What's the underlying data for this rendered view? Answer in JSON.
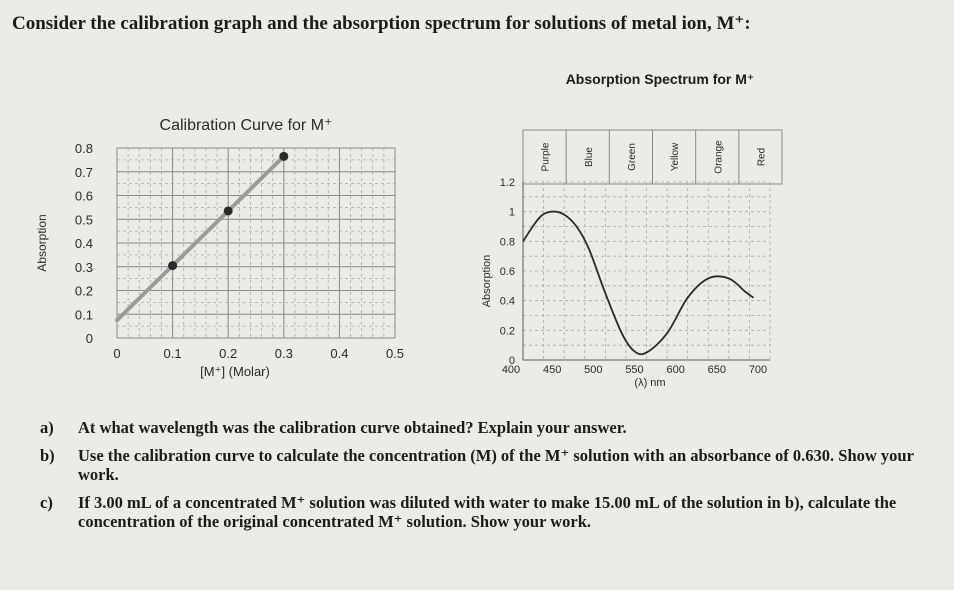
{
  "intro": {
    "text": "Consider the calibration graph and the absorption spectrum for solutions of metal ion, M⁺:"
  },
  "chart_data": [
    {
      "type": "line",
      "title": "Calibration Curve for M⁺",
      "xlabel": "[M⁺] (Molar)",
      "ylabel": "Absorption",
      "x_ticks": [
        "0",
        "0.1",
        "0.2",
        "0.3",
        "0.4",
        "0.5"
      ],
      "y_ticks": [
        "0",
        "0.1",
        "0.2",
        "0.3",
        "0.4",
        "0.5",
        "0.6",
        "0.7",
        "0.8"
      ],
      "xlim": [
        0,
        0.5
      ],
      "ylim": [
        0,
        0.8
      ],
      "grid": true,
      "x": [
        0,
        0.05,
        0.1,
        0.15,
        0.2,
        0.25,
        0.3
      ],
      "y": [
        0.075,
        0.19,
        0.305,
        0.42,
        0.535,
        0.65,
        0.765
      ],
      "marked_points": [
        {
          "x": 0.1,
          "y": 0.305
        },
        {
          "x": 0.2,
          "y": 0.535
        },
        {
          "x": 0.3,
          "y": 0.765
        }
      ],
      "line_color": "#9a9a9a",
      "marker_color": "#2a2a2a"
    },
    {
      "type": "line",
      "title": "Absorption Spectrum for M⁺",
      "xlabel": "(λ) nm",
      "ylabel": "Absorption",
      "x_ticks": [
        "400",
        "450",
        "500",
        "550",
        "600",
        "650",
        "700"
      ],
      "y_ticks": [
        "0",
        "0.2",
        "0.4",
        "0.6",
        "0.8",
        "1",
        "1.2"
      ],
      "xlim": [
        400,
        700
      ],
      "ylim": [
        0,
        1.2
      ],
      "grid": true,
      "bands": [
        "Purple",
        "Blue",
        "Green",
        "Yellow",
        "Orange",
        "Red"
      ],
      "x": [
        400,
        420,
        435,
        450,
        465,
        480,
        500,
        520,
        535,
        550,
        575,
        600,
        625,
        650,
        670,
        680
      ],
      "y": [
        0.8,
        0.96,
        1.0,
        0.98,
        0.9,
        0.75,
        0.45,
        0.18,
        0.06,
        0.05,
        0.18,
        0.42,
        0.55,
        0.55,
        0.46,
        0.42
      ],
      "line_color": "#2a2a2a"
    }
  ],
  "questions": [
    {
      "label": "a)",
      "text": "At what wavelength was the calibration curve obtained? Explain your answer."
    },
    {
      "label": "b)",
      "text": "Use the calibration curve to calculate the concentration (M) of the M⁺ solution with an absorbance of 0.630. Show your work."
    },
    {
      "label": "c)",
      "text": "If 3.00 mL of a concentrated M⁺ solution was diluted with water to make 15.00 mL of the solution in b), calculate the concentration of the original concentrated M⁺ solution. Show your work."
    }
  ]
}
